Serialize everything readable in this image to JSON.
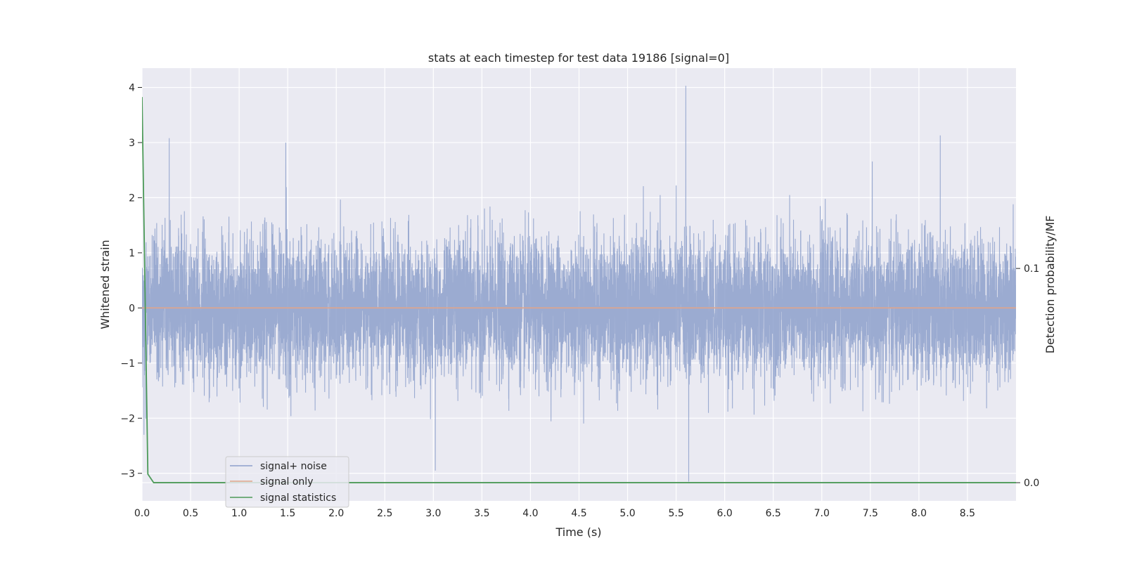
{
  "chart_data": {
    "type": "line",
    "title": "stats at each timestep for test data 19186 [signal=0]",
    "xlabel": "Time (s)",
    "ylabel": "Whitened strain",
    "ylabel_right": "Detection probability/MF",
    "xlim": [
      0.0,
      9.0
    ],
    "ylim": [
      -3.5,
      4.35
    ],
    "ylim_right": [
      -0.0085,
      0.1935
    ],
    "x_ticks": [
      "0.0",
      "0.5",
      "1.0",
      "1.5",
      "2.0",
      "2.5",
      "3.0",
      "3.5",
      "4.0",
      "4.5",
      "5.0",
      "5.5",
      "6.0",
      "6.5",
      "7.0",
      "7.5",
      "8.0",
      "8.5"
    ],
    "y_ticks": [
      "4",
      "3",
      "2",
      "1",
      "0",
      "−1",
      "−2",
      "−3"
    ],
    "y_right_ticks": [
      "0.1",
      "0.0"
    ],
    "grid": true,
    "legend_position": "lower-left",
    "series": [
      {
        "name": "signal+ noise",
        "color": "#8da0cb",
        "envelope_sd": 0.62,
        "samples": 9000,
        "noted_peaks": [
          {
            "x": 0.28,
            "y": 3.08
          },
          {
            "x": 1.48,
            "y": 3.0
          },
          {
            "x": 5.6,
            "y": 4.03
          },
          {
            "x": 8.22,
            "y": 3.13
          },
          {
            "x": 5.63,
            "y": -3.15
          },
          {
            "x": 0.02,
            "y": -2.3
          },
          {
            "x": 3.02,
            "y": -2.95
          }
        ]
      },
      {
        "name": "signal only",
        "color": "#e0a48a",
        "x": [
          0.0,
          9.0
        ],
        "y": [
          0.0,
          0.0
        ]
      },
      {
        "name": "signal statistics",
        "color": "#4c9a58",
        "axis": "right",
        "x": [
          0.0,
          0.06,
          0.12,
          9.0
        ],
        "y": [
          0.18,
          0.004,
          0.0,
          0.0
        ]
      }
    ]
  }
}
